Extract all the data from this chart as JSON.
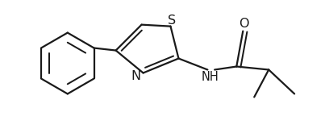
{
  "background_color": "#ffffff",
  "line_color": "#1a1a1a",
  "line_width": 1.6,
  "font_size": 10.5,
  "figsize": [
    4.03,
    1.65
  ],
  "dpi": 100,
  "xlim": [
    0.0,
    10.0
  ],
  "ylim": [
    0.0,
    4.1
  ]
}
